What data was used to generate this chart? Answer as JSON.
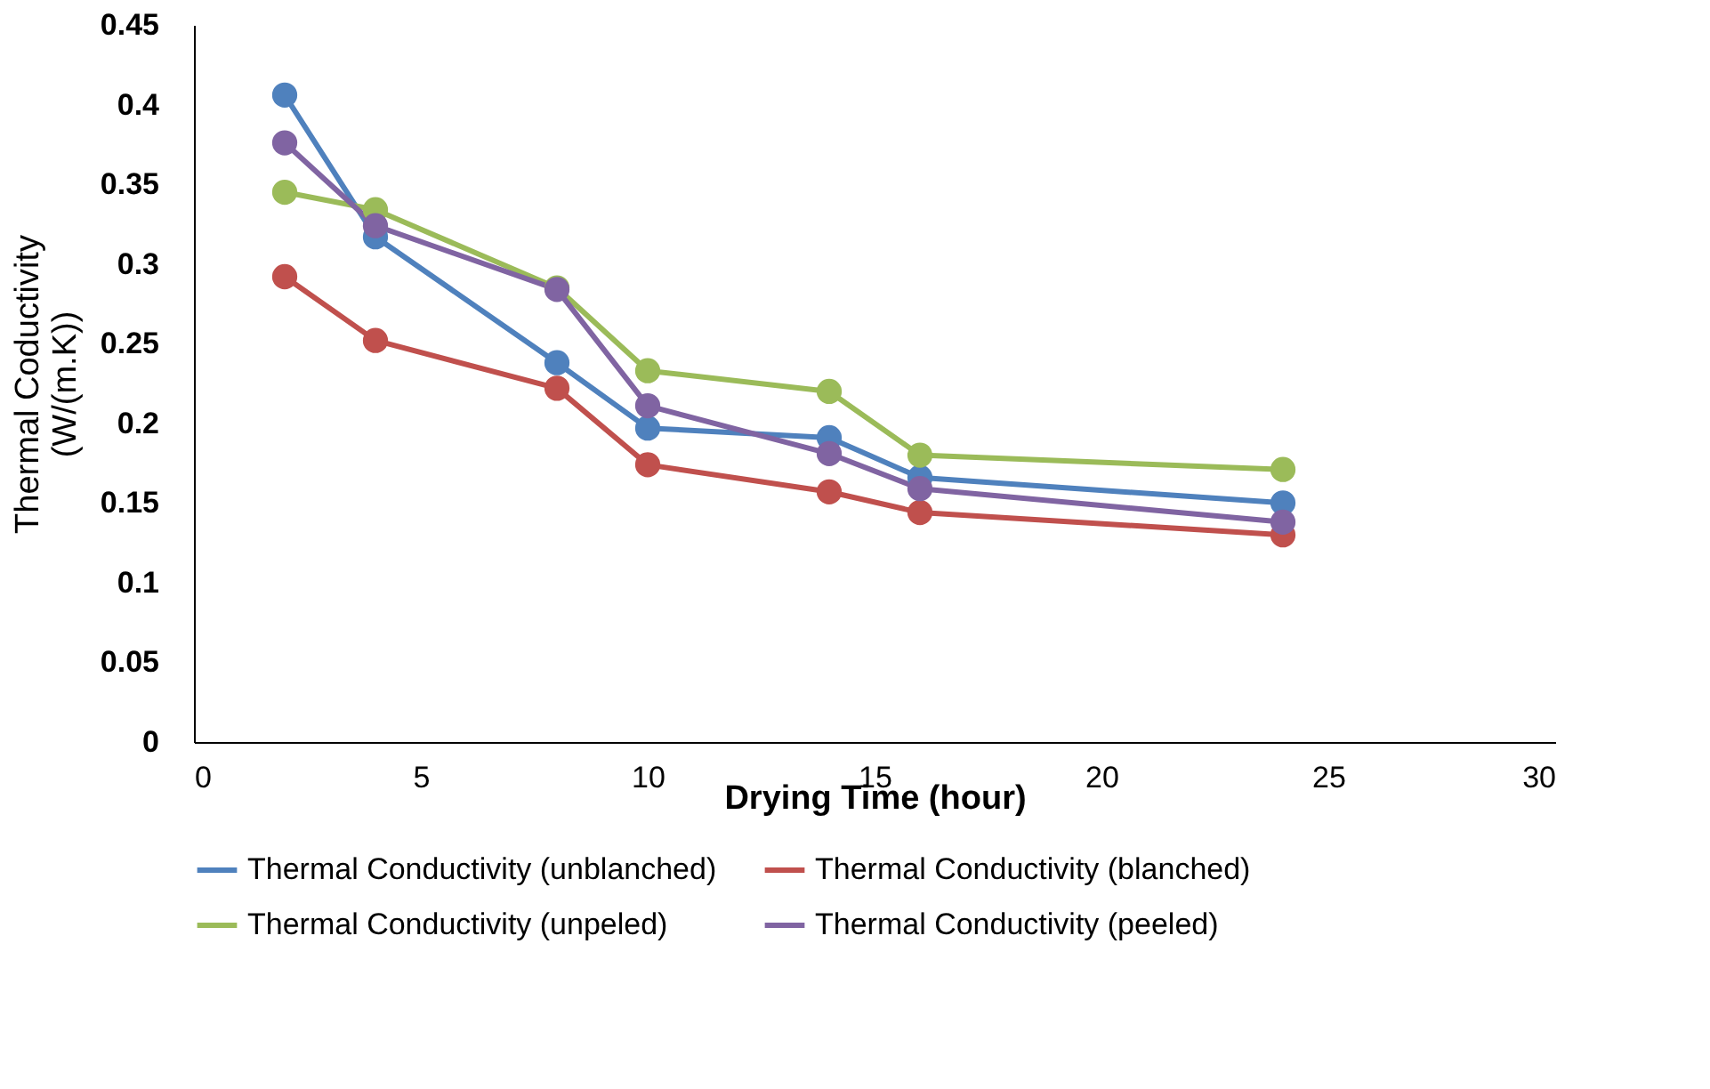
{
  "chart_data": {
    "type": "line",
    "xlabel": "Drying Time (hour)",
    "ylabel": "Thermal Coductivity\n(W/(m.K))",
    "x": [
      2,
      4,
      8,
      10,
      14,
      16,
      24
    ],
    "series": [
      {
        "name": "Thermal Conductivity (unblanched)",
        "color": "#4f81bd",
        "values": [
          0.406,
          0.317,
          0.238,
          0.197,
          0.191,
          0.166,
          0.15
        ]
      },
      {
        "name": "Thermal Conductivity (blanched)",
        "color": "#c0504d",
        "values": [
          0.292,
          0.252,
          0.222,
          0.174,
          0.157,
          0.144,
          0.13
        ]
      },
      {
        "name": "Thermal Conductivity (unpeled)",
        "color": "#9bbb59",
        "values": [
          0.345,
          0.334,
          0.285,
          0.233,
          0.22,
          0.18,
          0.171
        ]
      },
      {
        "name": "Thermal Conductivity (peeled)",
        "color": "#8064a2",
        "values": [
          0.376,
          0.324,
          0.284,
          0.211,
          0.181,
          0.159,
          0.138
        ]
      }
    ],
    "xlim": [
      0,
      30
    ],
    "xticks": [
      0,
      5,
      10,
      15,
      20,
      25,
      30
    ],
    "ylim": [
      0,
      0.45
    ],
    "yticks": [
      0,
      0.05,
      0.1,
      0.15,
      0.2,
      0.25,
      0.3,
      0.35,
      0.4,
      0.45
    ],
    "grid": false,
    "legend": "bottom",
    "marker": "circle",
    "line_style": "solid"
  }
}
